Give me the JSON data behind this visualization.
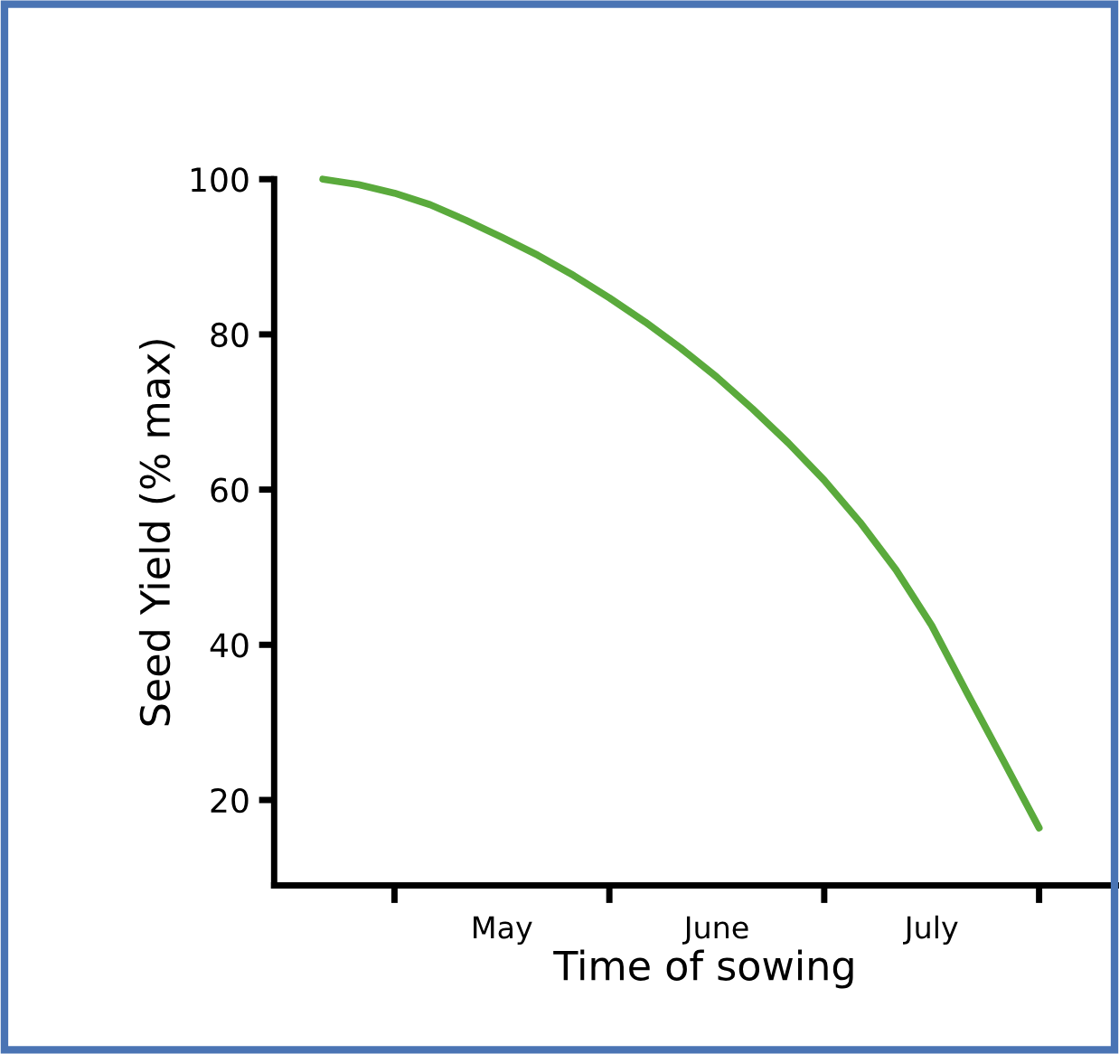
{
  "chart_data": {
    "type": "line",
    "xlabel": "Time of sowing",
    "ylabel": "Seed Yield (% max)",
    "categories": [
      null,
      null,
      null,
      null,
      null,
      "May",
      null,
      null,
      null,
      null,
      null,
      "June",
      null,
      null,
      null,
      null,
      null,
      "July",
      null,
      null,
      null
    ],
    "series": [
      {
        "color": "#5aaa3c",
        "values": [
          100,
          99.3,
          98.2,
          96.7,
          94.7,
          92.5,
          90.2,
          87.6,
          84.7,
          81.6,
          78.2,
          74.5,
          70.4,
          66.0,
          61.2,
          55.8,
          49.7,
          42.5,
          33.7,
          25.1,
          16.4
        ]
      }
    ],
    "ylim": [
      9,
      100
    ],
    "yticks": [
      20,
      40,
      60,
      80,
      100
    ],
    "grid": false,
    "marker": "none",
    "line_style": "solid"
  }
}
